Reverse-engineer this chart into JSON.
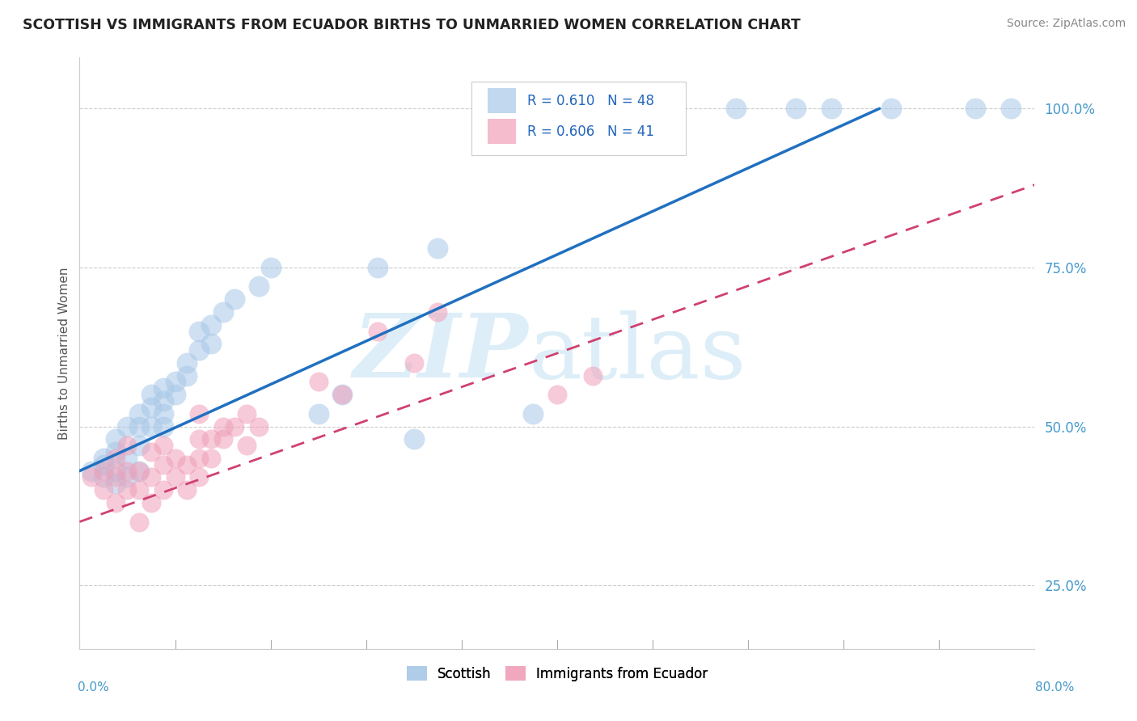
{
  "title": "SCOTTISH VS IMMIGRANTS FROM ECUADOR BIRTHS TO UNMARRIED WOMEN CORRELATION CHART",
  "source": "Source: ZipAtlas.com",
  "ylabel": "Births to Unmarried Women",
  "y_tick_labels": [
    "25.0%",
    "50.0%",
    "75.0%",
    "100.0%"
  ],
  "y_tick_values": [
    0.25,
    0.5,
    0.75,
    1.0
  ],
  "xlim": [
    0.0,
    0.8
  ],
  "ylim": [
    0.15,
    1.08
  ],
  "blue_R": 0.61,
  "blue_N": 48,
  "pink_R": 0.606,
  "pink_N": 41,
  "blue_color": "#a8c8e8",
  "pink_color": "#f0a0b8",
  "blue_line_color": "#2070c0",
  "pink_line_color": "#d04070",
  "watermark_zip": "ZIP",
  "watermark_atlas": "atlas",
  "watermark_color": "#ddeef8",
  "blue_scatter_x": [
    0.01,
    0.02,
    0.02,
    0.02,
    0.03,
    0.03,
    0.03,
    0.03,
    0.04,
    0.04,
    0.04,
    0.05,
    0.05,
    0.05,
    0.05,
    0.06,
    0.06,
    0.06,
    0.07,
    0.07,
    0.07,
    0.07,
    0.08,
    0.08,
    0.09,
    0.09,
    0.1,
    0.1,
    0.11,
    0.11,
    0.12,
    0.13,
    0.15,
    0.16,
    0.2,
    0.22,
    0.25,
    0.28,
    0.3,
    0.38,
    0.4,
    0.42,
    0.55,
    0.6,
    0.63,
    0.68,
    0.75,
    0.78
  ],
  "blue_scatter_y": [
    0.43,
    0.42,
    0.44,
    0.45,
    0.41,
    0.43,
    0.46,
    0.48,
    0.42,
    0.45,
    0.5,
    0.43,
    0.47,
    0.5,
    0.52,
    0.5,
    0.53,
    0.55,
    0.52,
    0.54,
    0.56,
    0.5,
    0.55,
    0.57,
    0.58,
    0.6,
    0.62,
    0.65,
    0.63,
    0.66,
    0.68,
    0.7,
    0.72,
    0.75,
    0.52,
    0.55,
    0.75,
    0.48,
    0.78,
    0.52,
    1.0,
    1.0,
    1.0,
    1.0,
    1.0,
    1.0,
    1.0,
    1.0
  ],
  "pink_scatter_x": [
    0.01,
    0.02,
    0.02,
    0.03,
    0.03,
    0.03,
    0.04,
    0.04,
    0.04,
    0.05,
    0.05,
    0.05,
    0.06,
    0.06,
    0.06,
    0.07,
    0.07,
    0.07,
    0.08,
    0.08,
    0.09,
    0.09,
    0.1,
    0.1,
    0.1,
    0.1,
    0.11,
    0.11,
    0.12,
    0.12,
    0.13,
    0.14,
    0.14,
    0.15,
    0.2,
    0.22,
    0.25,
    0.28,
    0.3,
    0.4,
    0.43
  ],
  "pink_scatter_y": [
    0.42,
    0.4,
    0.43,
    0.38,
    0.42,
    0.45,
    0.4,
    0.43,
    0.47,
    0.35,
    0.4,
    0.43,
    0.38,
    0.42,
    0.46,
    0.4,
    0.44,
    0.47,
    0.42,
    0.45,
    0.4,
    0.44,
    0.42,
    0.45,
    0.48,
    0.52,
    0.45,
    0.48,
    0.48,
    0.5,
    0.5,
    0.47,
    0.52,
    0.5,
    0.57,
    0.55,
    0.65,
    0.6,
    0.68,
    0.55,
    0.58
  ],
  "blue_line_x": [
    0.0,
    0.67
  ],
  "blue_line_y": [
    0.43,
    1.0
  ],
  "pink_line_x": [
    0.0,
    0.8
  ],
  "pink_line_y": [
    0.35,
    0.88
  ]
}
